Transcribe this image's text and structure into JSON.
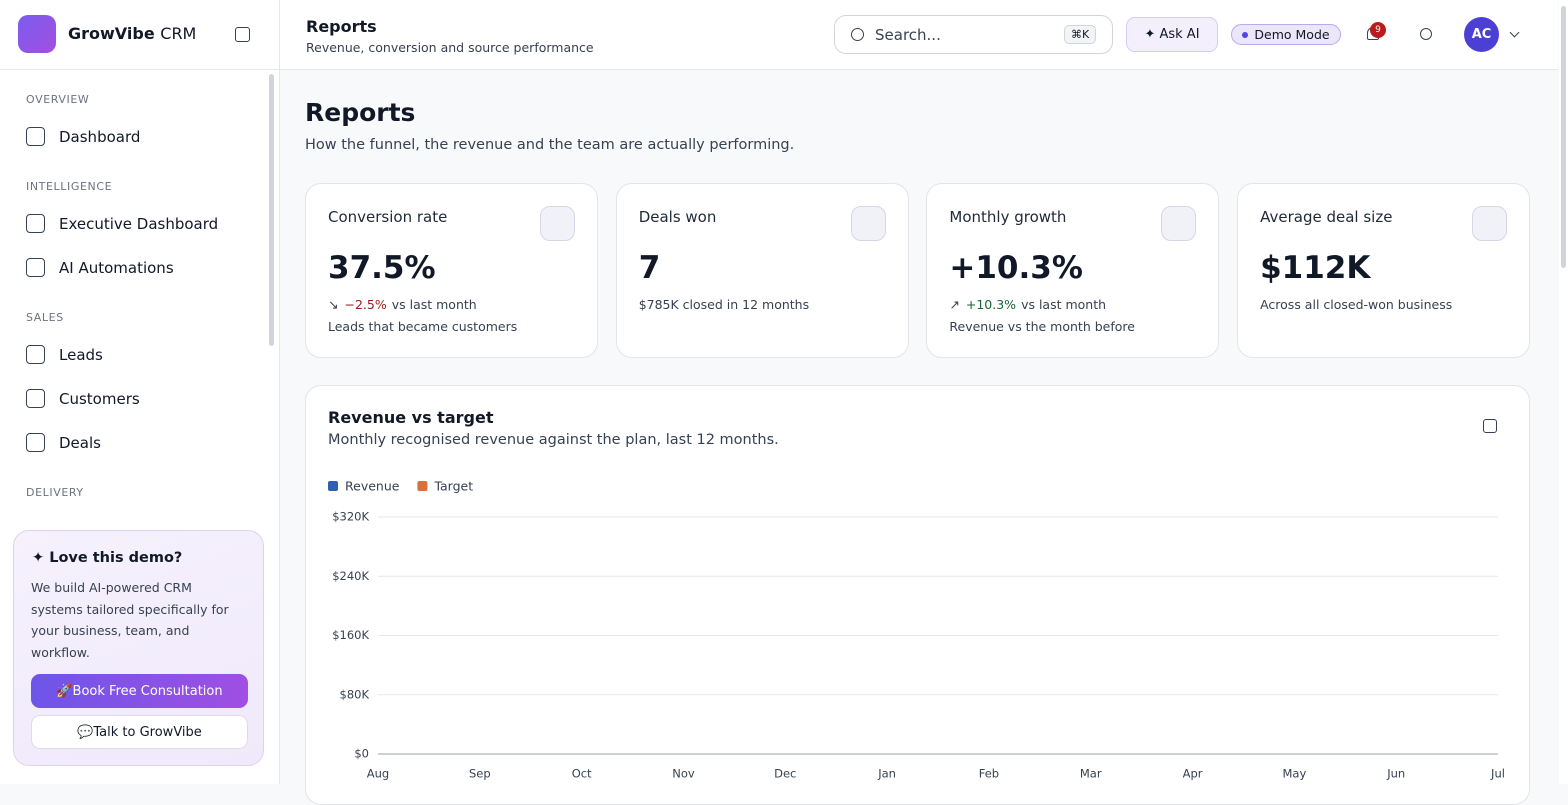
{
  "brand": {
    "name": "GrowVibe",
    "suffix": "CRM"
  },
  "topbar": {
    "title": "Reports",
    "subtitle": "Revenue, conversion and source performance",
    "search": "Search...",
    "shortcut": "⌘K",
    "ask_ai": "Ask AI",
    "demo_mode": "Demo Mode",
    "notifications": "9",
    "avatar": "AC"
  },
  "sidebar": {
    "sections": [
      {
        "label": "OVERVIEW",
        "items": [
          "Dashboard"
        ]
      },
      {
        "label": "INTELLIGENCE",
        "items": [
          "Executive Dashboard",
          "AI Automations"
        ]
      },
      {
        "label": "SALES",
        "items": [
          "Leads",
          "Customers",
          "Deals"
        ]
      },
      {
        "label": "DELIVERY",
        "items": []
      }
    ],
    "promo": {
      "title": "Love this demo?",
      "text": "We build AI-powered CRM systems tailored specifically for your business, team, and workflow.",
      "primary": "🚀Book Free Consultation",
      "secondary": "💬Talk to GrowVibe"
    }
  },
  "page": {
    "title": "Reports",
    "subtitle": "How the funnel, the revenue and the team are actually performing."
  },
  "kpis": [
    {
      "label": "Conversion rate",
      "value": "37.5%",
      "delta": "−2.5%",
      "delta_text": "vs last month",
      "note": "Leads that became customers"
    },
    {
      "label": "Deals won",
      "value": "7",
      "note": "$785K closed in 12 months"
    },
    {
      "label": "Monthly growth",
      "value": "+10.3%",
      "delta": "+10.3%",
      "delta_text": "vs last month",
      "note": "Revenue vs the month before"
    },
    {
      "label": "Average deal size",
      "value": "$112K",
      "note": "Across all closed-won business"
    }
  ],
  "chart_data": {
    "type": "line",
    "title": "Revenue vs target",
    "subtitle": "Monthly recognised revenue against the plan, last 12 months.",
    "categories": [
      "Aug",
      "Sep",
      "Oct",
      "Nov",
      "Dec",
      "Jan",
      "Feb",
      "Mar",
      "Apr",
      "May",
      "Jun",
      "Jul"
    ],
    "series": [
      {
        "name": "Revenue",
        "color": "#2f5fb3"
      },
      {
        "name": "Target",
        "color": "#d9703c"
      }
    ],
    "ylim": [
      0,
      320000
    ],
    "yticks": [
      {
        "value": 0,
        "label": "$0"
      },
      {
        "value": 80000,
        "label": "$80K"
      },
      {
        "value": 160000,
        "label": "$160K"
      },
      {
        "value": 240000,
        "label": "$240K"
      },
      {
        "value": 320000,
        "label": "$320K"
      }
    ],
    "grid": true
  }
}
